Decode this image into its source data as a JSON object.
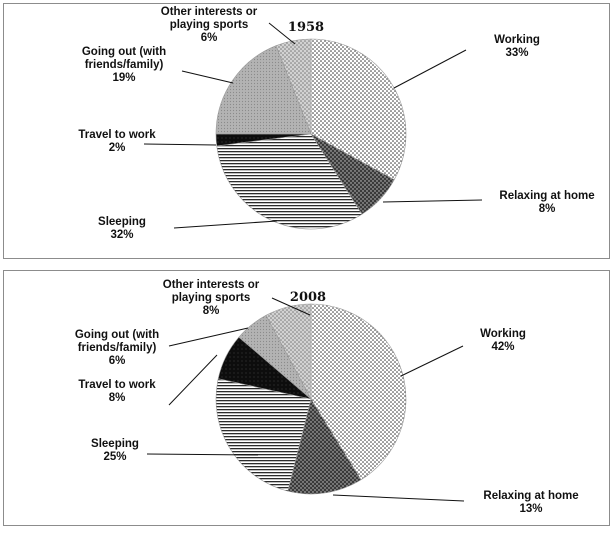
{
  "chart_data": [
    {
      "type": "pie",
      "title": "1958",
      "slices": [
        {
          "label": [
            "Working"
          ],
          "value": 33,
          "display": "33%",
          "pattern": "dots"
        },
        {
          "label": [
            "Relaxing at home"
          ],
          "value": 8,
          "display": "8%",
          "pattern": "darkcross"
        },
        {
          "label": [
            "Sleeping"
          ],
          "value": 32,
          "display": "32%",
          "pattern": "hlines"
        },
        {
          "label": [
            "Travel to work"
          ],
          "value": 2,
          "display": "2%",
          "pattern": "black"
        },
        {
          "label": [
            "Going out (with",
            "friends/family)"
          ],
          "value": 19,
          "display": "19%",
          "pattern": "gray"
        },
        {
          "label": [
            "Other interests or",
            "playing sports"
          ],
          "value": 6,
          "display": "6%",
          "pattern": "lightdots"
        }
      ]
    },
    {
      "type": "pie",
      "title": "2008",
      "slices": [
        {
          "label": [
            "Working"
          ],
          "value": 42,
          "display": "42%",
          "pattern": "dots"
        },
        {
          "label": [
            "Relaxing at home"
          ],
          "value": 13,
          "display": "13%",
          "pattern": "darkcross"
        },
        {
          "label": [
            "Sleeping"
          ],
          "value": 25,
          "display": "25%",
          "pattern": "hlines"
        },
        {
          "label": [
            "Travel to work"
          ],
          "value": 8,
          "display": "8%",
          "pattern": "black"
        },
        {
          "label": [
            "Going out (with",
            "friends/family)"
          ],
          "value": 6,
          "display": "6%",
          "pattern": "gray"
        },
        {
          "label": [
            "Other interests or",
            "playing sports"
          ],
          "value": 8,
          "display": "8%",
          "pattern": "lightdots"
        }
      ]
    }
  ]
}
